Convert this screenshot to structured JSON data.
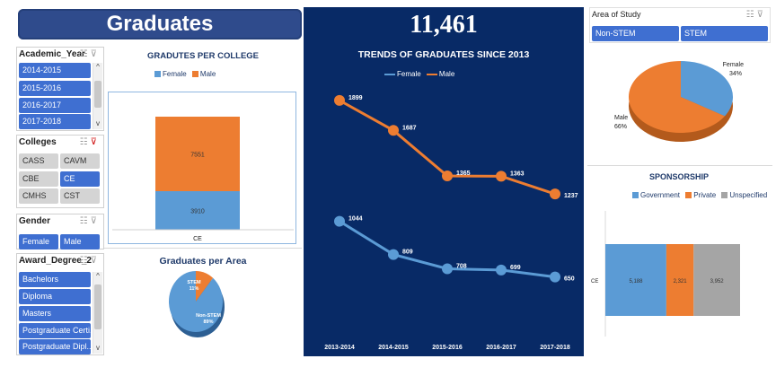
{
  "header": {
    "title": "Graduates",
    "total": "11,461"
  },
  "slicers": {
    "academic_year": {
      "title": "Academic_Year",
      "items": [
        "2014-2015",
        "2015-2016",
        "2016-2017",
        "2017-2018"
      ]
    },
    "colleges": {
      "title": "Colleges",
      "items": [
        "CASS",
        "CAVM",
        "CBE",
        "CE",
        "CMHS",
        "CST"
      ],
      "selected": [
        "CE"
      ]
    },
    "gender": {
      "title": "Gender",
      "items": [
        "Female",
        "Male"
      ]
    },
    "award_degree": {
      "title": "Award_Degree_2",
      "items": [
        "Bachelors",
        "Diploma",
        "Masters",
        "Postgraduate Certi...",
        "Postgraduate Dipl..."
      ]
    },
    "area_of_study": {
      "title": "Area of Study",
      "items": [
        "Non-STEM",
        "STEM"
      ]
    }
  },
  "colors": {
    "female": "#5b9bd5",
    "male": "#ed7d31",
    "government": "#5b9bd5",
    "private": "#ed7d31",
    "unspecified": "#a5a5a5",
    "slicer_selected": "#3f6fd1",
    "panel": "#082a66"
  },
  "chart_data": [
    {
      "id": "per_college",
      "type": "bar",
      "title": "GRADUTES PER COLLEGE",
      "categories": [
        "CE"
      ],
      "stacked": true,
      "series": [
        {
          "name": "Female",
          "values": [
            3910
          ]
        },
        {
          "name": "Male",
          "values": [
            7551
          ]
        }
      ]
    },
    {
      "id": "per_area",
      "type": "pie",
      "title": "Graduates per Area",
      "labels": [
        "STEM",
        "Non-STEM"
      ],
      "values": [
        11,
        89
      ],
      "label_text": [
        "STEM\n11%",
        "Non-STEM\n89%"
      ]
    },
    {
      "id": "trends",
      "type": "line",
      "title": "TRENDS OF GRADUATES SINCE 2013",
      "categories": [
        "2013-2014",
        "2014-2015",
        "2015-2016",
        "2016-2017",
        "2017-2018"
      ],
      "series": [
        {
          "name": "Female",
          "values": [
            1044,
            809,
            708,
            699,
            650
          ]
        },
        {
          "name": "Male",
          "values": [
            1899,
            1687,
            1365,
            1363,
            1237
          ]
        }
      ]
    },
    {
      "id": "gender_pie",
      "type": "pie",
      "labels": [
        "Female",
        "Male"
      ],
      "values": [
        34,
        66
      ],
      "label_text": [
        "Female\n34%",
        "Male\n66%"
      ]
    },
    {
      "id": "sponsorship",
      "type": "bar",
      "orientation": "horizontal",
      "stacked": true,
      "title": "SPONSORSHIP",
      "categories": [
        "CE"
      ],
      "series": [
        {
          "name": "Government",
          "values": [
            5188
          ],
          "label": "5,188"
        },
        {
          "name": "Private",
          "values": [
            2321
          ],
          "label": "2,321"
        },
        {
          "name": "Unspecified",
          "values": [
            3952
          ],
          "label": "3,952"
        }
      ]
    }
  ]
}
